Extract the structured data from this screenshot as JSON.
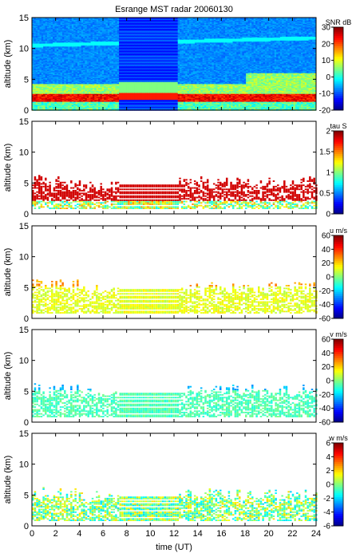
{
  "title": "Esrange MST radar 20060130",
  "x_axis": {
    "label": "time (UT)",
    "ticks": [
      "0",
      "2",
      "4",
      "6",
      "8",
      "10",
      "12",
      "14",
      "16",
      "18",
      "20",
      "22",
      "24"
    ],
    "range": [
      0,
      24
    ]
  },
  "chart_data": [
    {
      "type": "heatmap",
      "ylabel": "altitude (km)",
      "yticks": [
        "0",
        "5",
        "10",
        "15"
      ],
      "ylim": [
        0,
        15
      ],
      "xlim": [
        0,
        24
      ],
      "colorbar": {
        "label": "SNR dB",
        "ticks": [
          "30",
          "20",
          "10",
          "0",
          "-10",
          "-20"
        ],
        "range": [
          -20,
          30
        ]
      },
      "fill": "full"
    },
    {
      "type": "heatmap",
      "ylabel": "altitude (km)",
      "yticks": [
        "0",
        "5",
        "10",
        "15"
      ],
      "ylim": [
        0,
        15
      ],
      "xlim": [
        0,
        24
      ],
      "colorbar": {
        "label": "tau S",
        "ticks": [
          "2",
          "1.5",
          "1",
          "0.5",
          "0"
        ],
        "range": [
          0,
          2
        ]
      },
      "fill": "sparse"
    },
    {
      "type": "heatmap",
      "ylabel": "altitude (km)",
      "yticks": [
        "0",
        "5",
        "10",
        "15"
      ],
      "ylim": [
        0,
        15
      ],
      "xlim": [
        0,
        24
      ],
      "colorbar": {
        "label": "u m/s",
        "ticks": [
          "60",
          "40",
          "20",
          "0",
          "-20",
          "-40",
          "-60"
        ],
        "range": [
          -60,
          60
        ]
      },
      "fill": "sparse"
    },
    {
      "type": "heatmap",
      "ylabel": "altitude (km)",
      "yticks": [
        "0",
        "5",
        "10",
        "15"
      ],
      "ylim": [
        0,
        15
      ],
      "xlim": [
        0,
        24
      ],
      "colorbar": {
        "label": "v m/s",
        "ticks": [
          "60",
          "40",
          "20",
          "0",
          "-20",
          "-40",
          "-60"
        ],
        "range": [
          -60,
          60
        ]
      },
      "fill": "sparse"
    },
    {
      "type": "heatmap",
      "ylabel": "altitude (km)",
      "yticks": [
        "0",
        "5",
        "10",
        "15"
      ],
      "ylim": [
        0,
        15
      ],
      "xlim": [
        0,
        24
      ],
      "colorbar": {
        "label": "w m/s",
        "ticks": [
          "6",
          "4",
          "2",
          "0",
          "-2",
          "-4",
          "-6"
        ],
        "range": [
          -6,
          6
        ]
      },
      "fill": "sparse"
    }
  ]
}
